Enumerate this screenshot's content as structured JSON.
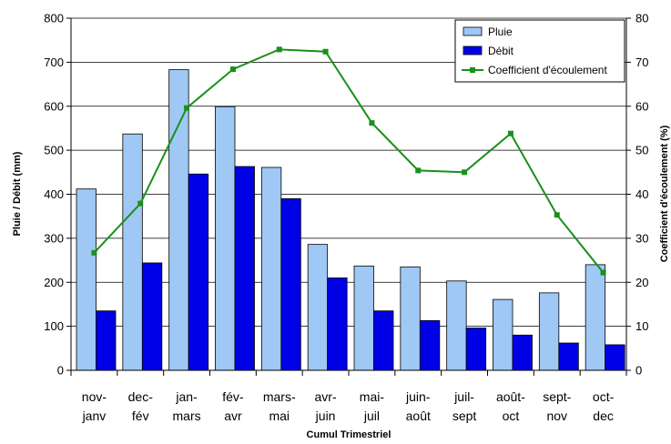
{
  "chart_data": {
    "type": "bar",
    "categories": [
      [
        "nov-",
        "janv"
      ],
      [
        "dec-",
        "fév"
      ],
      [
        "jan-",
        "mars"
      ],
      [
        "fév-",
        "avr"
      ],
      [
        "mars-",
        "mai"
      ],
      [
        "avr-",
        "juin"
      ],
      [
        "mai-",
        "juil"
      ],
      [
        "juin-",
        "août"
      ],
      [
        "juil-",
        "sept"
      ],
      [
        "août-",
        "oct"
      ],
      [
        "sept-",
        "nov"
      ],
      [
        "oct-",
        "dec"
      ]
    ],
    "series": [
      {
        "name": "Pluie",
        "type": "bar",
        "axis": "left",
        "color": "#9fc8f4",
        "values": [
          412,
          537,
          683,
          599,
          461,
          286,
          237,
          235,
          203,
          161,
          176,
          240
        ]
      },
      {
        "name": "Débit",
        "type": "bar",
        "axis": "left",
        "color": "#0000e6",
        "values": [
          135,
          244,
          446,
          463,
          390,
          210,
          135,
          113,
          96,
          80,
          62,
          58
        ]
      },
      {
        "name": "Coefficient d'écoulement",
        "type": "line",
        "axis": "right",
        "color": "#1a8f1a",
        "values": [
          26.7,
          37.9,
          59.6,
          68.4,
          72.9,
          72.4,
          56.2,
          45.4,
          45.0,
          53.8,
          35.3,
          22.2
        ]
      }
    ],
    "xlabel": "Cumul Trimestriel",
    "ylabel": "Pluie / Débit (mm)",
    "y2label": "Coefficient d'écoulement (%)",
    "ylim": [
      0,
      800
    ],
    "y2lim": [
      0,
      80
    ],
    "yticks": [
      0,
      100,
      200,
      300,
      400,
      500,
      600,
      700,
      800
    ],
    "y2ticks": [
      0,
      10,
      20,
      30,
      40,
      50,
      60,
      70,
      80
    ],
    "grid": true,
    "legend": "top-right"
  }
}
